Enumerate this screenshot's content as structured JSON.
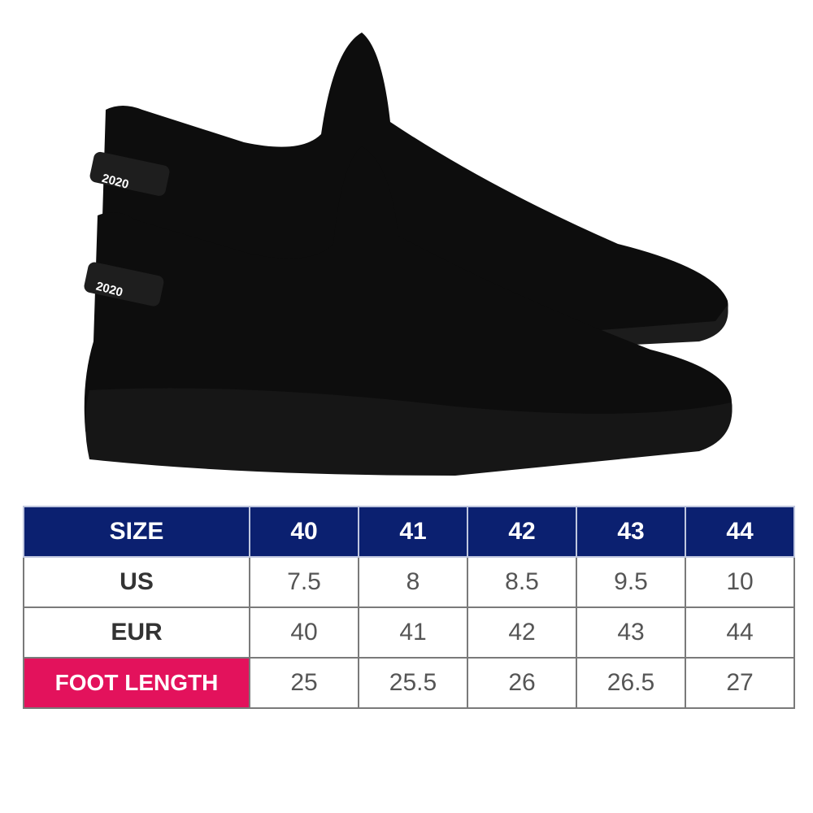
{
  "product_image": {
    "heel_tab_text": "2020",
    "shoe_color": "#0d0d0d"
  },
  "size_table": {
    "header_color": "#0b2070",
    "highlight_color": "#e3125c",
    "header": {
      "label": "SIZE",
      "values": [
        "40",
        "41",
        "42",
        "43",
        "44"
      ]
    },
    "rows": [
      {
        "label": "US",
        "values": [
          "7.5",
          "8",
          "8.5",
          "9.5",
          "10"
        ]
      },
      {
        "label": "EUR",
        "values": [
          "40",
          "41",
          "42",
          "43",
          "44"
        ]
      },
      {
        "label": "FOOT LENGTH",
        "values": [
          "25",
          "25.5",
          "26",
          "26.5",
          "27"
        ]
      }
    ]
  }
}
